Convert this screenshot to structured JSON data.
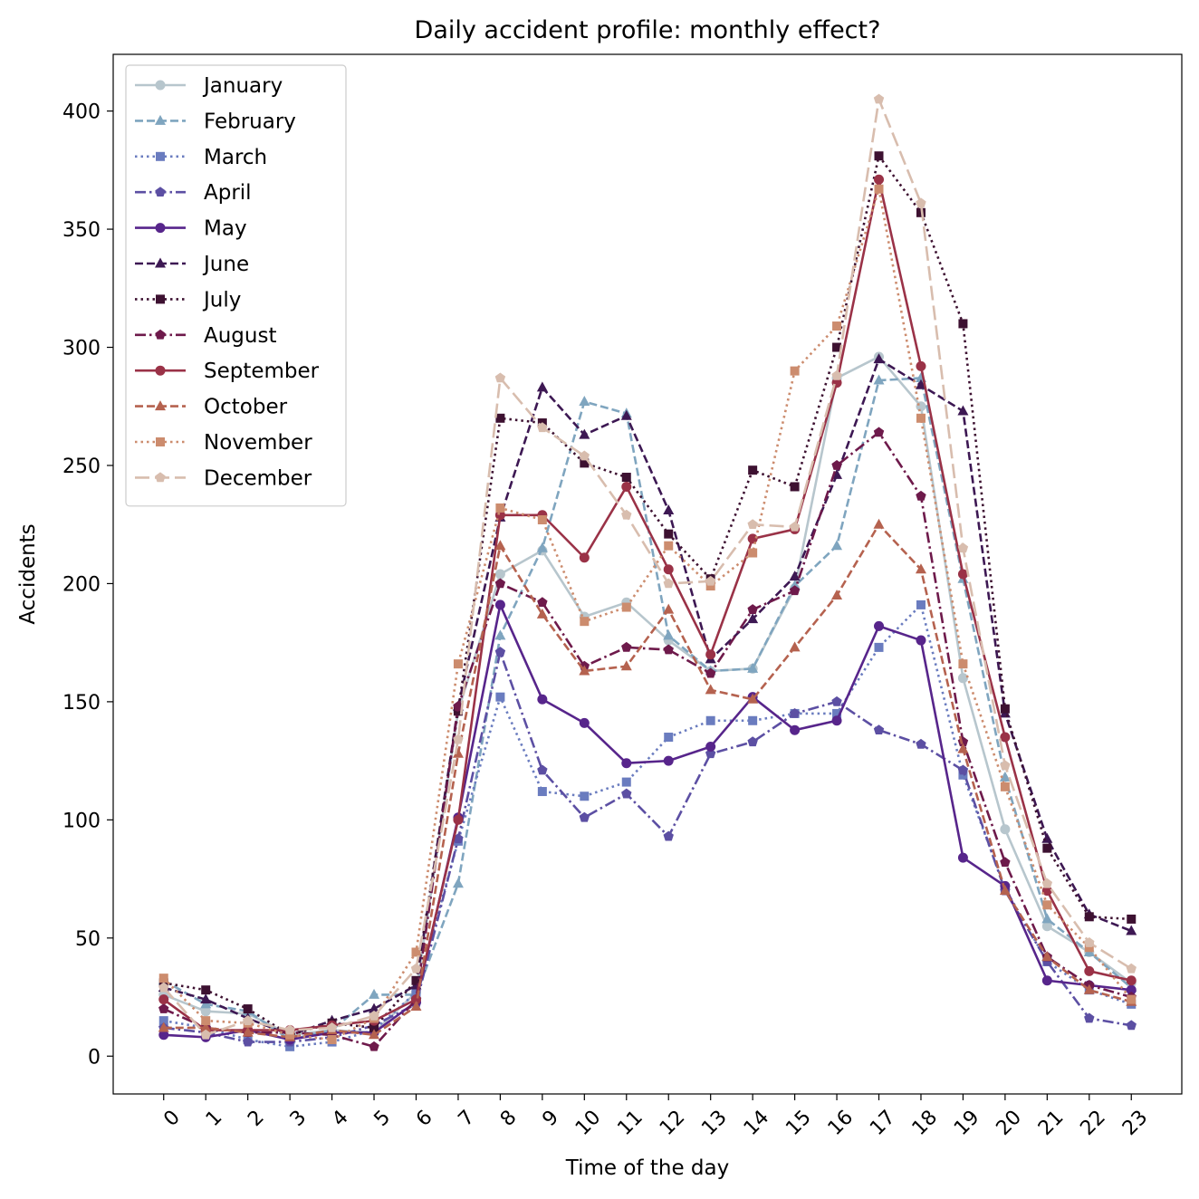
{
  "chart_data": {
    "type": "line",
    "title": "Daily accident profile: monthly effect?",
    "xlabel": "Time of the day",
    "ylabel": "Accidents",
    "x": [
      0,
      1,
      2,
      3,
      4,
      5,
      6,
      7,
      8,
      9,
      10,
      11,
      12,
      13,
      14,
      15,
      16,
      17,
      18,
      19,
      20,
      21,
      22,
      23
    ],
    "x_tick_labels": [
      "0",
      "1",
      "2",
      "3",
      "4",
      "5",
      "6",
      "7",
      "8",
      "9",
      "10",
      "11",
      "12",
      "13",
      "14",
      "15",
      "16",
      "17",
      "18",
      "19",
      "20",
      "21",
      "22",
      "23"
    ],
    "xlim": [
      -1.2,
      24.2
    ],
    "ylim": [
      -16,
      424
    ],
    "y_ticks": [
      0,
      50,
      100,
      150,
      200,
      250,
      300,
      350,
      400
    ],
    "y_tick_labels": [
      "0",
      "50",
      "100",
      "150",
      "200",
      "250",
      "300",
      "350",
      "400"
    ],
    "grid": false,
    "legend_position": "top-left",
    "series": [
      {
        "name": "January",
        "color": "#b7c6cd",
        "dash": "solid",
        "marker": "circle",
        "values": [
          26,
          19,
          18,
          9,
          11,
          10,
          27,
          146,
          204,
          214,
          186,
          192,
          176,
          163,
          164,
          198,
          287,
          296,
          275,
          160,
          96,
          55,
          44,
          31
        ]
      },
      {
        "name": "February",
        "color": "#7fa5bf",
        "dash": "dashed",
        "marker": "triangle",
        "values": [
          32,
          22,
          19,
          7,
          11,
          26,
          26,
          73,
          178,
          215,
          277,
          272,
          178,
          163,
          164,
          199,
          216,
          286,
          287,
          202,
          118,
          58,
          44,
          29
        ]
      },
      {
        "name": "March",
        "color": "#6a7cbf",
        "dash": "dotted",
        "marker": "square",
        "values": [
          15,
          12,
          7,
          4,
          6,
          11,
          27,
          91,
          152,
          112,
          110,
          116,
          135,
          142,
          142,
          145,
          145,
          173,
          191,
          119,
          71,
          40,
          28,
          22
        ]
      },
      {
        "name": "April",
        "color": "#5c4fa3",
        "dash": "dashdot",
        "marker": "pentagon",
        "values": [
          12,
          10,
          6,
          6,
          8,
          13,
          22,
          92,
          171,
          121,
          101,
          111,
          93,
          128,
          133,
          145,
          150,
          138,
          132,
          121,
          70,
          40,
          16,
          13
        ]
      },
      {
        "name": "May",
        "color": "#57258b",
        "dash": "solid",
        "marker": "circle",
        "values": [
          9,
          8,
          11,
          7,
          10,
          10,
          23,
          101,
          191,
          151,
          141,
          124,
          125,
          131,
          152,
          138,
          142,
          182,
          176,
          84,
          72,
          32,
          30,
          28
        ]
      },
      {
        "name": "June",
        "color": "#3d1853",
        "dash": "dashed",
        "marker": "triangle",
        "values": [
          29,
          24,
          16,
          9,
          15,
          20,
          30,
          148,
          228,
          283,
          263,
          271,
          231,
          168,
          185,
          203,
          246,
          295,
          284,
          273,
          145,
          92,
          60,
          53
        ]
      },
      {
        "name": "July",
        "color": "#3d1131",
        "dash": "dotted",
        "marker": "square",
        "values": [
          31,
          28,
          20,
          9,
          14,
          12,
          32,
          146,
          270,
          268,
          251,
          245,
          221,
          202,
          248,
          241,
          300,
          381,
          357,
          310,
          147,
          88,
          59,
          58
        ]
      },
      {
        "name": "August",
        "color": "#6e1a4b",
        "dash": "dashdot",
        "marker": "pentagon",
        "values": [
          20,
          12,
          10,
          10,
          9,
          4,
          24,
          148,
          200,
          192,
          165,
          173,
          172,
          162,
          189,
          197,
          250,
          264,
          237,
          133,
          82,
          42,
          30,
          25
        ]
      },
      {
        "name": "September",
        "color": "#9a3247",
        "dash": "solid",
        "marker": "circle",
        "values": [
          24,
          11,
          11,
          11,
          13,
          15,
          24,
          100,
          229,
          229,
          211,
          241,
          206,
          170,
          219,
          223,
          285,
          371,
          292,
          204,
          135,
          70,
          36,
          32
        ]
      },
      {
        "name": "October",
        "color": "#b5624f",
        "dash": "dashed",
        "marker": "triangle",
        "values": [
          12,
          12,
          10,
          8,
          11,
          9,
          21,
          128,
          216,
          187,
          163,
          165,
          189,
          155,
          151,
          173,
          195,
          225,
          206,
          130,
          70,
          42,
          28,
          23
        ]
      },
      {
        "name": "November",
        "color": "#cc8c6e",
        "dash": "dotted",
        "marker": "square",
        "values": [
          33,
          15,
          14,
          9,
          7,
          16,
          44,
          166,
          232,
          227,
          184,
          190,
          216,
          199,
          213,
          290,
          309,
          367,
          270,
          166,
          114,
          64,
          46,
          24
        ]
      },
      {
        "name": "December",
        "color": "#d8bdae",
        "dash": "longdash",
        "marker": "pentagon",
        "values": [
          29,
          9,
          15,
          11,
          12,
          17,
          37,
          134,
          287,
          266,
          254,
          229,
          200,
          201,
          225,
          224,
          288,
          405,
          361,
          215,
          123,
          73,
          48,
          37
        ]
      }
    ]
  }
}
